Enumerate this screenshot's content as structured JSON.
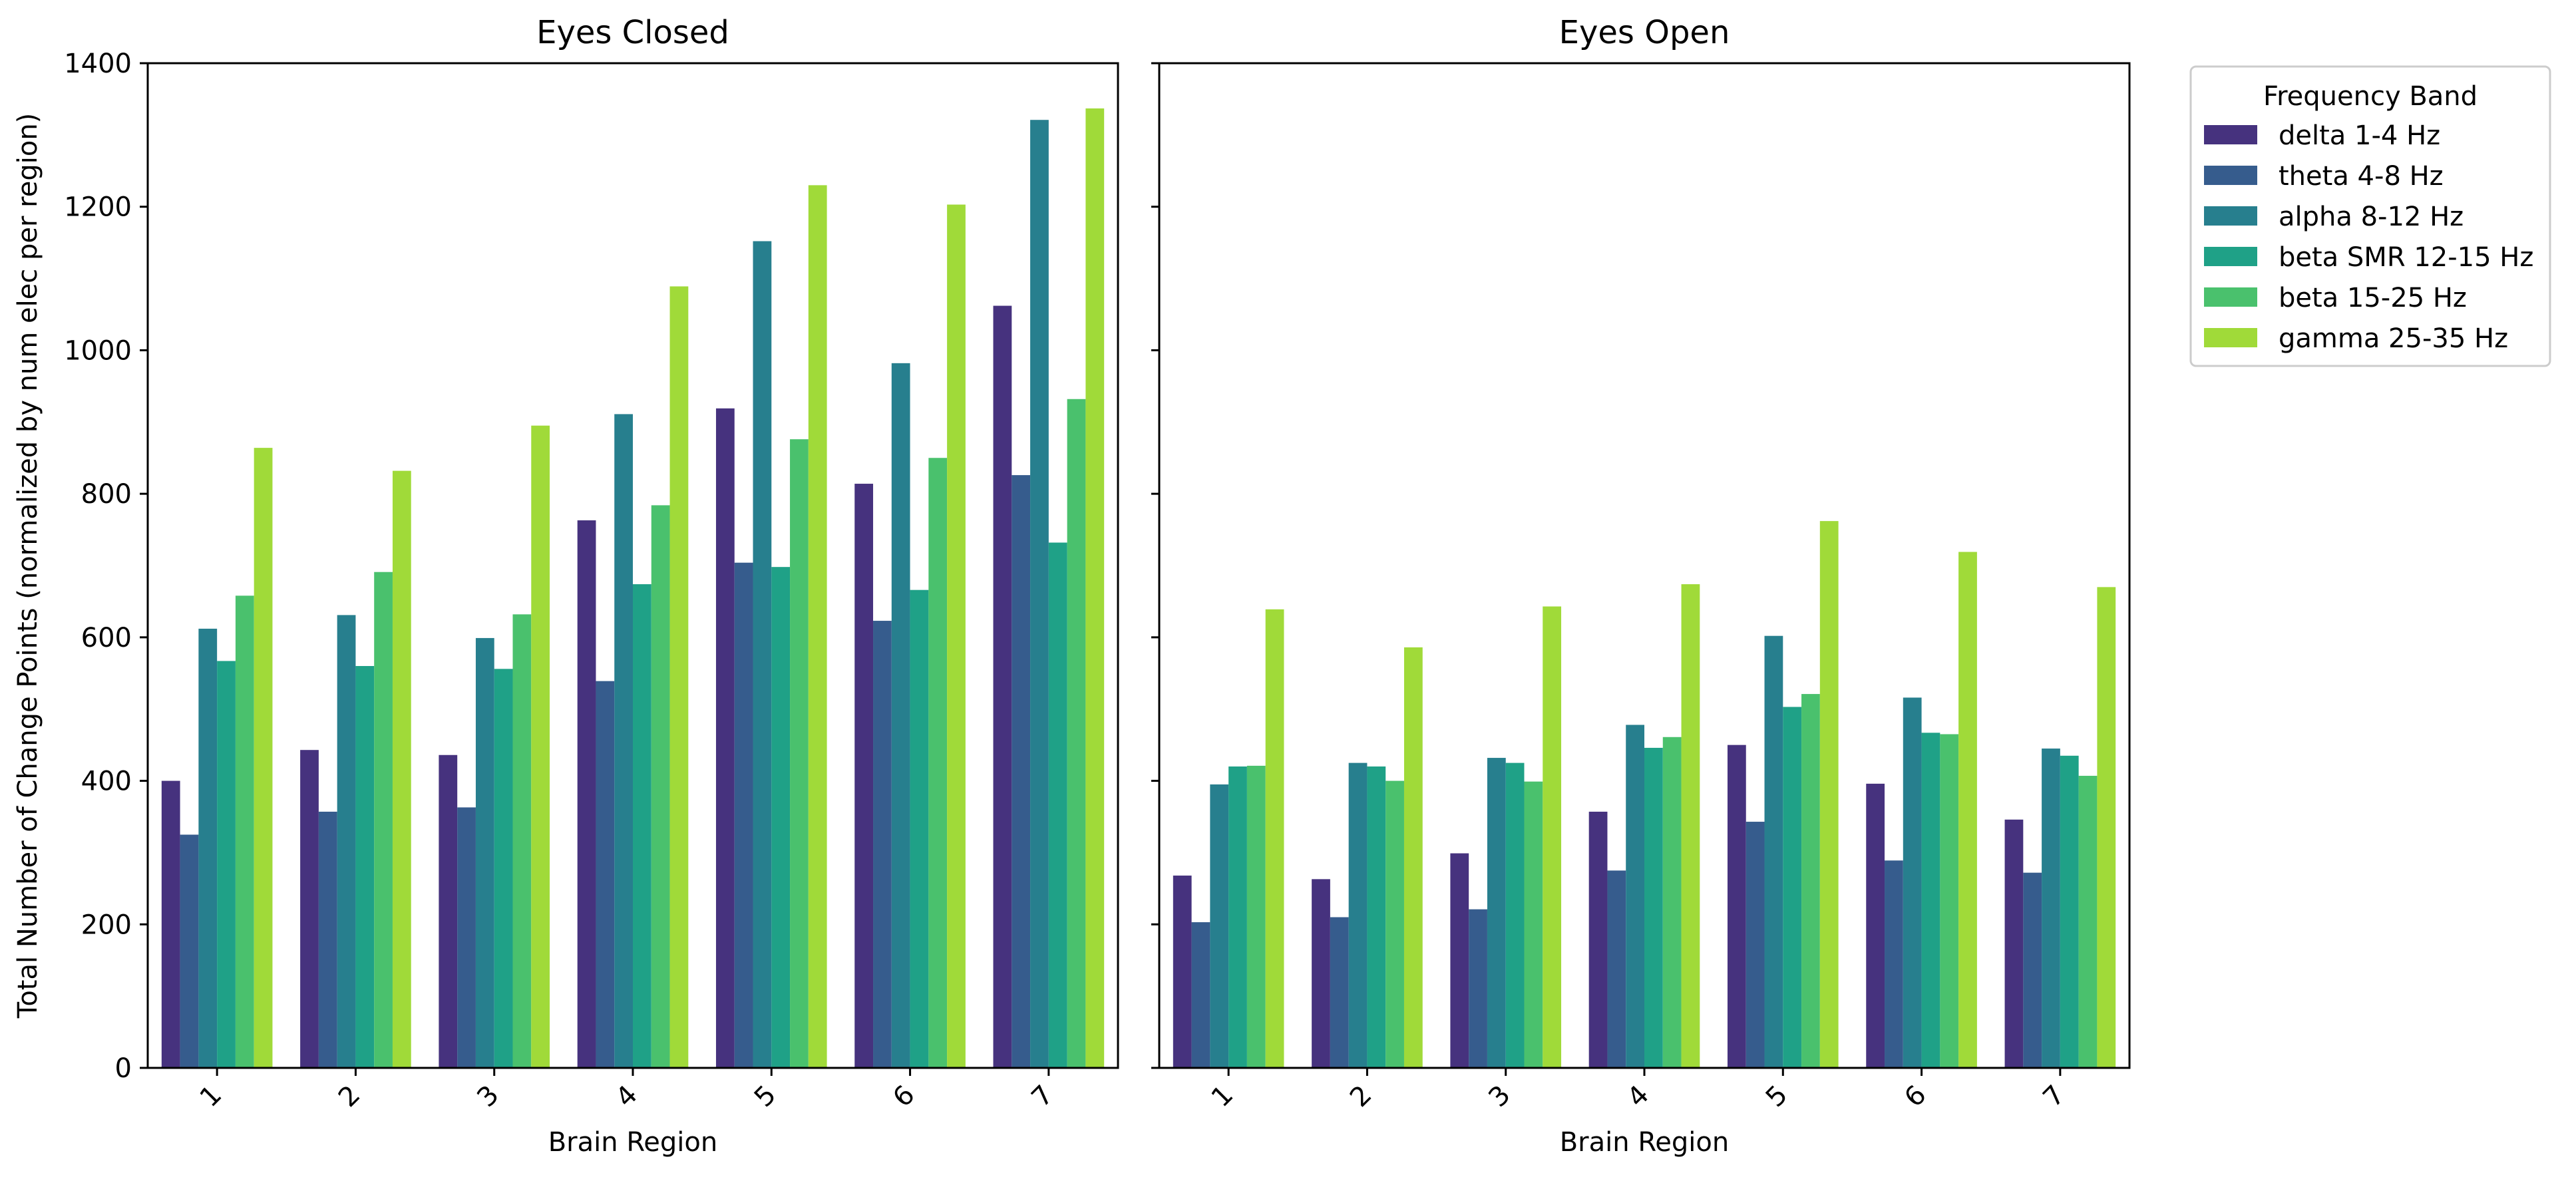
{
  "chart_data": {
    "type": "bar",
    "ylabel": "Total Number of Change Points (normalized by num elec per region)",
    "ylim": [
      0,
      1400
    ],
    "yticks": [
      0,
      200,
      400,
      600,
      800,
      1000,
      1200,
      1400
    ],
    "grid": false,
    "legend": {
      "title": "Frequency Band",
      "placement": "outside-top-right"
    },
    "series_meta": [
      {
        "name": "delta 1-4 Hz",
        "color": "#46327e"
      },
      {
        "name": "theta 4-8 Hz",
        "color": "#365c8d"
      },
      {
        "name": "alpha 8-12 Hz",
        "color": "#277f8e"
      },
      {
        "name": "beta SMR 12-15 Hz",
        "color": "#1fa187"
      },
      {
        "name": "beta 15-25 Hz",
        "color": "#4ac16d"
      },
      {
        "name": "gamma 25-35 Hz",
        "color": "#a0da39"
      }
    ],
    "panels": [
      {
        "title": "Eyes Closed",
        "xlabel": "Brain Region",
        "categories": [
          "1",
          "2",
          "3",
          "4",
          "5",
          "6",
          "7"
        ],
        "series": [
          {
            "name": "delta 1-4 Hz",
            "values": [
              400,
              443,
              436,
              763,
              919,
              814,
              1062
            ]
          },
          {
            "name": "theta 4-8 Hz",
            "values": [
              325,
              357,
              363,
              539,
              704,
              623,
              826
            ]
          },
          {
            "name": "alpha 8-12 Hz",
            "values": [
              612,
              631,
              599,
              911,
              1152,
              982,
              1321
            ]
          },
          {
            "name": "beta SMR 12-15 Hz",
            "values": [
              567,
              560,
              556,
              674,
              698,
              666,
              732
            ]
          },
          {
            "name": "beta 15-25 Hz",
            "values": [
              658,
              691,
              632,
              784,
              876,
              850,
              932
            ]
          },
          {
            "name": "gamma 25-35 Hz",
            "values": [
              864,
              832,
              895,
              1089,
              1230,
              1203,
              1337
            ]
          }
        ]
      },
      {
        "title": "Eyes Open",
        "xlabel": "Brain Region",
        "categories": [
          "1",
          "2",
          "3",
          "4",
          "5",
          "6",
          "7"
        ],
        "series": [
          {
            "name": "delta 1-4 Hz",
            "values": [
              268,
              263,
              299,
              357,
              450,
              396,
              346
            ]
          },
          {
            "name": "theta 4-8 Hz",
            "values": [
              203,
              210,
              221,
              275,
              343,
              289,
              272
            ]
          },
          {
            "name": "alpha 8-12 Hz",
            "values": [
              395,
              425,
              432,
              478,
              602,
              516,
              445
            ]
          },
          {
            "name": "beta SMR 12-15 Hz",
            "values": [
              420,
              420,
              425,
              446,
              503,
              467,
              435
            ]
          },
          {
            "name": "beta 15-25 Hz",
            "values": [
              421,
              400,
              399,
              461,
              521,
              465,
              407
            ]
          },
          {
            "name": "gamma 25-35 Hz",
            "values": [
              639,
              586,
              643,
              674,
              762,
              719,
              670
            ]
          }
        ]
      }
    ]
  }
}
